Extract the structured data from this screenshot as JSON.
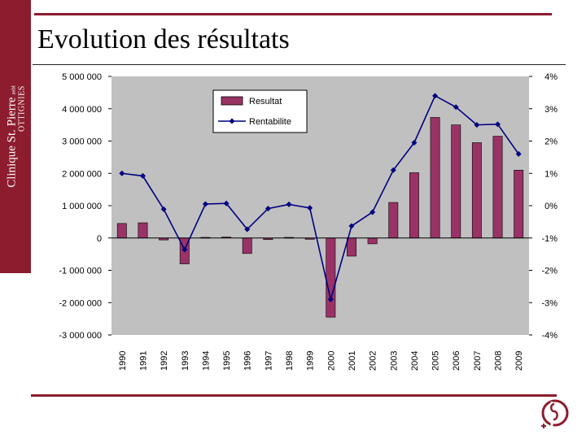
{
  "sidebar": {
    "brand": "Clinique St. Pierre",
    "suffix": "asbl",
    "city": "OTTIGNIES"
  },
  "slide": {
    "title": "Evolution des résultats"
  },
  "colors": {
    "accent": "#8c1c2e",
    "bar": "#993366",
    "line": "#000080",
    "plot_bg": "#c0c0c0"
  },
  "chart_data": {
    "type": "bar",
    "categories": [
      "1990",
      "1991",
      "1992",
      "1993",
      "1994",
      "1995",
      "1996",
      "1997",
      "1998",
      "1999",
      "2000",
      "2001",
      "2002",
      "2003",
      "2004",
      "2005",
      "2006",
      "2007",
      "2008",
      "2009"
    ],
    "series": [
      {
        "name": "Resultat",
        "type": "bar",
        "axis": "left",
        "values": [
          450000,
          470000,
          -60000,
          -800000,
          20000,
          30000,
          -480000,
          -50000,
          20000,
          -40000,
          -2450000,
          -560000,
          -180000,
          1100000,
          2020000,
          3730000,
          3500000,
          2950000,
          3150000,
          2100000
        ]
      },
      {
        "name": "Rentabilite",
        "type": "line",
        "axis": "right",
        "values": [
          1.0,
          0.92,
          -0.11,
          -1.36,
          0.05,
          0.07,
          -0.73,
          -0.09,
          0.04,
          -0.07,
          -2.9,
          -0.63,
          -0.2,
          1.1,
          1.95,
          3.4,
          3.05,
          2.5,
          2.52,
          1.6
        ]
      }
    ],
    "y_left": {
      "ylim": [
        -3000000,
        5000000
      ],
      "ticks": [
        5000000,
        4000000,
        3000000,
        2000000,
        1000000,
        0,
        -1000000,
        -2000000,
        -3000000
      ],
      "tick_labels": [
        "5 000 000",
        "4 000 000",
        "3 000 000",
        "2 000 000",
        "1 000 000",
        "0",
        "-1 000 000",
        "-2 000 000",
        "-3 000 000"
      ]
    },
    "y_right": {
      "ylim": [
        -4,
        4
      ],
      "ticks": [
        4,
        3,
        2,
        1,
        0,
        -1,
        -2,
        -3,
        -4
      ],
      "tick_labels": [
        "4%",
        "3%",
        "2%",
        "1%",
        "0%",
        "-1%",
        "-2%",
        "-3%",
        "-4%"
      ]
    },
    "legend": {
      "placement": "top-left"
    },
    "grid": false
  }
}
